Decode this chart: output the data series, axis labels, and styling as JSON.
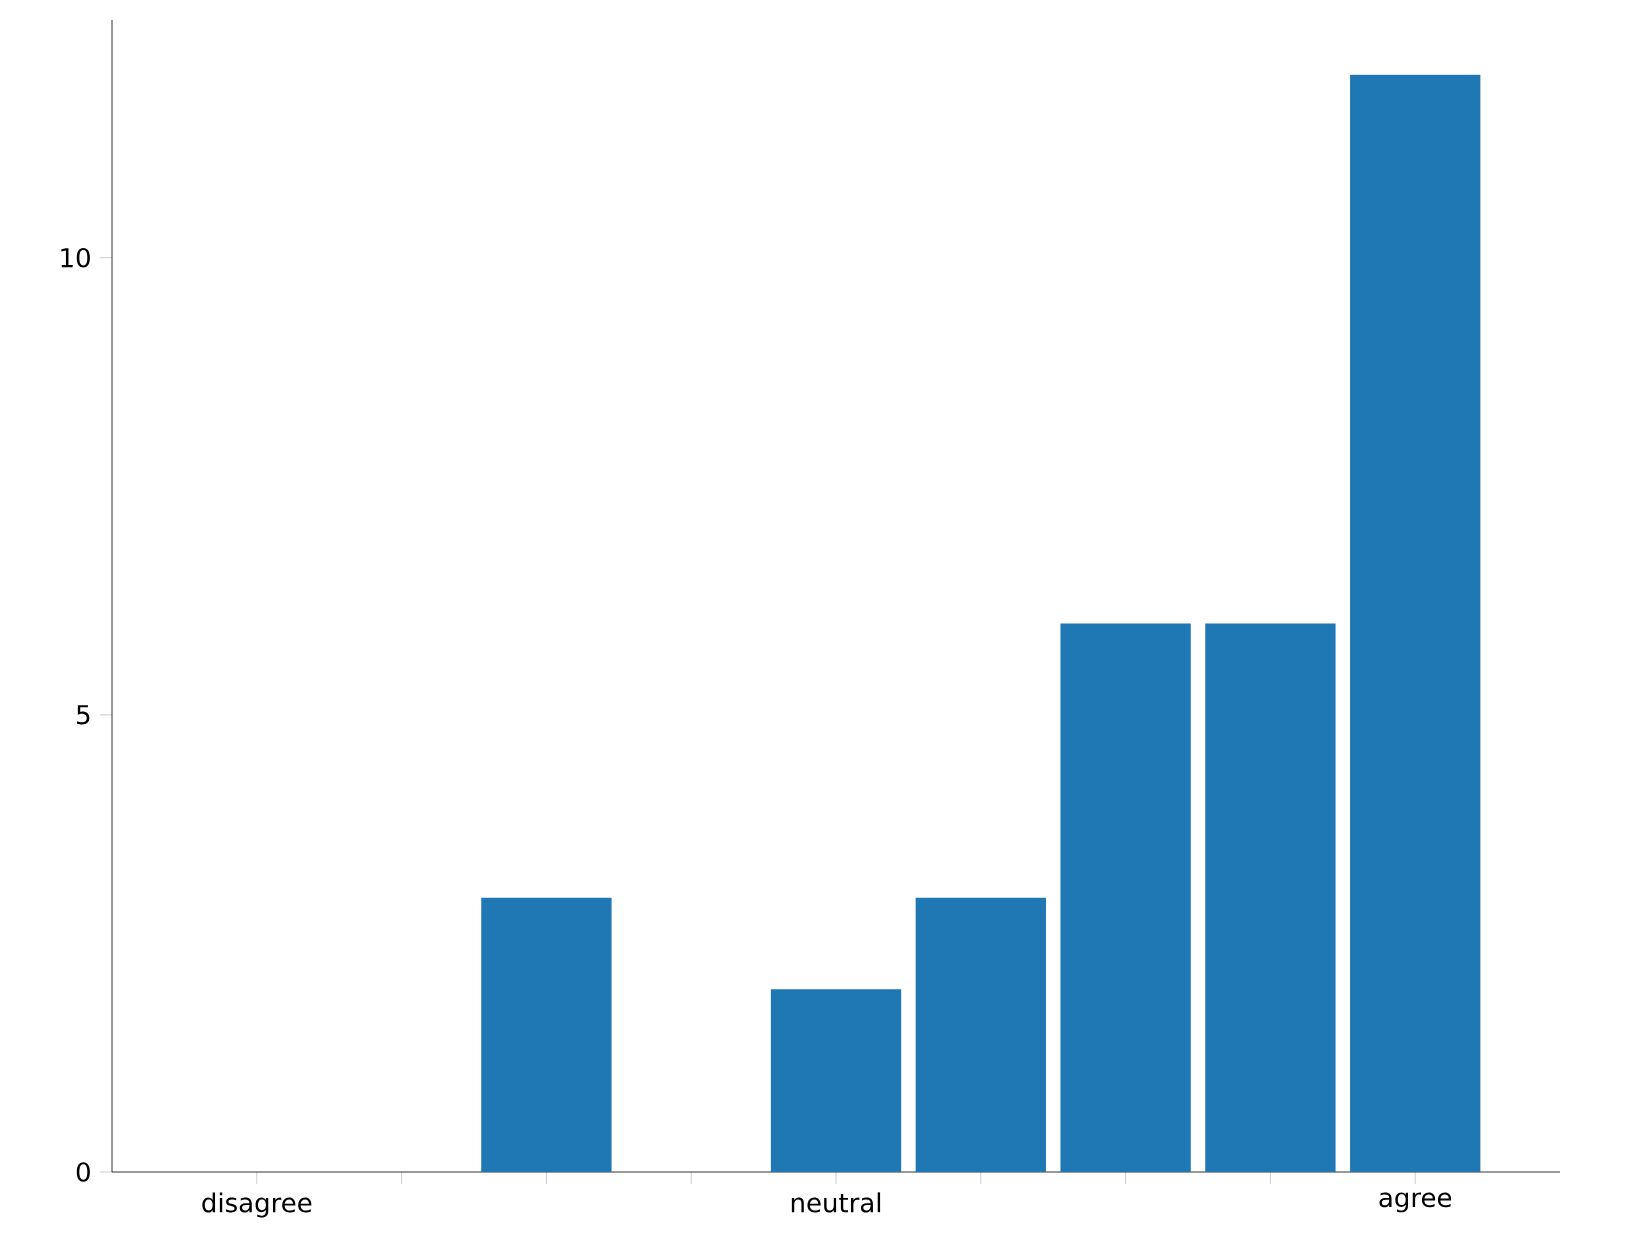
{
  "chart_data": {
    "type": "bar",
    "categories": [
      "disagree",
      null,
      null,
      null,
      "neutral",
      null,
      null,
      null,
      "agree"
    ],
    "values": [
      0,
      0,
      3,
      0,
      2,
      3,
      6,
      6,
      12
    ],
    "color": "#1f77b4",
    "ylim": [
      0,
      12.6
    ],
    "yticks": [
      0,
      5,
      10
    ]
  }
}
